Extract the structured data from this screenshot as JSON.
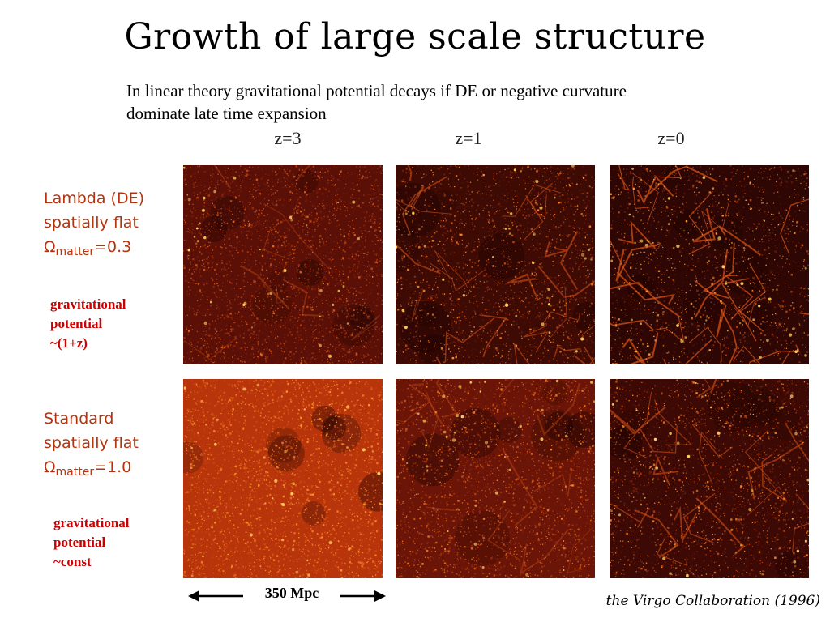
{
  "title": "Growth of large scale structure",
  "subtitle_line1": "In linear theory gravitational potential decays if DE or negative curvature",
  "subtitle_line2": "dominate late time expansion",
  "columns": [
    "z=3",
    "z=1",
    "z=0"
  ],
  "rows": [
    {
      "line1": "Lambda (DE)",
      "line2": "spatially flat",
      "omega_symbol": "Ω",
      "omega_sub": "matter",
      "omega_value": "=0.3",
      "potential": [
        "gravitational",
        "potential",
        "~(1+z)"
      ]
    },
    {
      "line1": "Standard",
      "line2": "spatially flat",
      "omega_symbol": "Ω",
      "omega_sub": "matter",
      "omega_value": "=1.0",
      "potential": [
        "gravitational",
        "potential",
        "~const"
      ]
    }
  ],
  "scale_label": "350 Mpc",
  "credit": "the Virgo Collaboration (1996)",
  "colors": {
    "row_label": "#b3340e",
    "potential": "#cc0000",
    "panel_dark": "#3a0a05",
    "panel_bright": "#ff9a2a"
  }
}
